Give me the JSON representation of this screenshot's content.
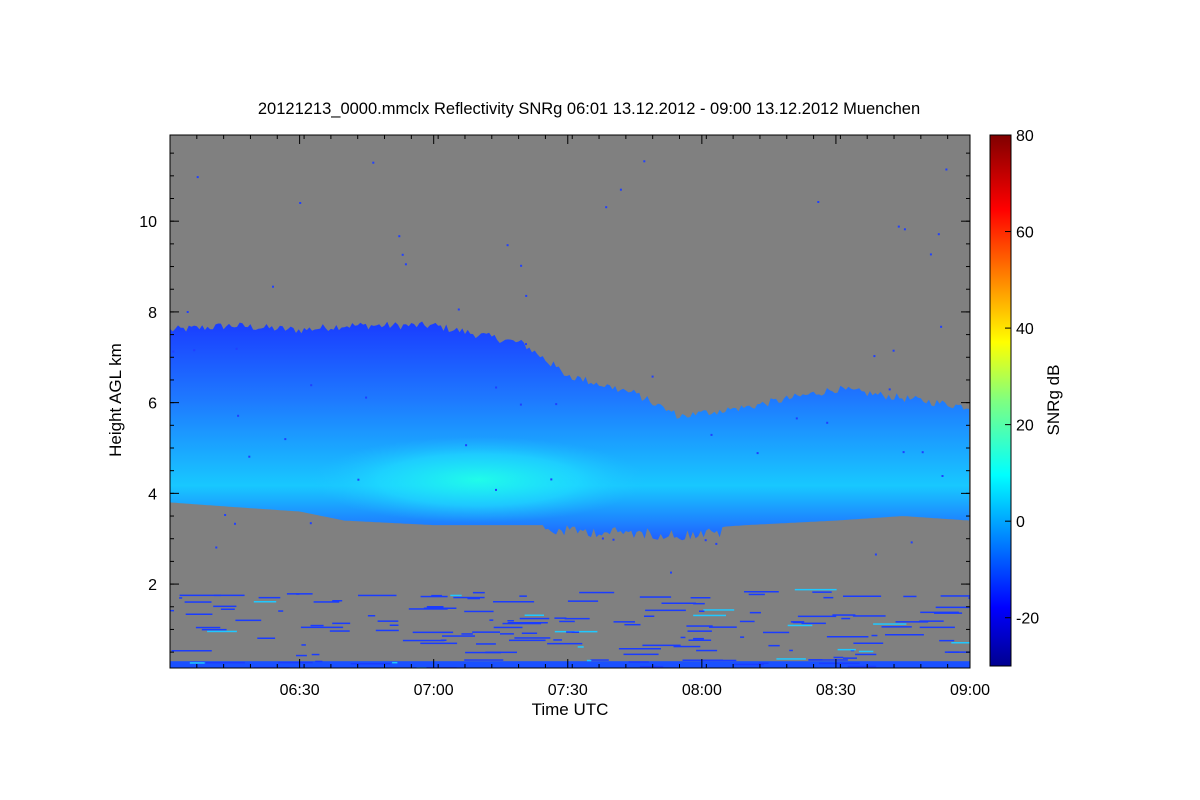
{
  "chart_data": {
    "type": "heatmap",
    "title": "20121213_0000.mmclx Reflectivity SNRg   06:01 13.12.2012 - 09:00 13.12.2012 Muenchen",
    "xlabel": "Time UTC",
    "ylabel": "Height AGL km",
    "x_range": [
      "06:01",
      "09:00"
    ],
    "x_ticks": [
      "06:30",
      "07:00",
      "07:30",
      "08:00",
      "08:30",
      "09:00"
    ],
    "y_range": [
      0.15,
      11.9
    ],
    "y_ticks": [
      2,
      4,
      6,
      8,
      10
    ],
    "colorbar": {
      "label": "SNRg dB",
      "range": [
        -30,
        80
      ],
      "ticks": [
        -20,
        0,
        20,
        40,
        60,
        80
      ],
      "colormap": "jet"
    },
    "background_color": "#808080",
    "cloud_layer": {
      "times": [
        "06:01",
        "06:15",
        "06:30",
        "06:40",
        "07:00",
        "07:20",
        "07:30",
        "07:45",
        "07:55",
        "08:10",
        "08:30",
        "08:45",
        "09:00"
      ],
      "top_km": [
        7.6,
        7.7,
        7.6,
        7.7,
        7.7,
        7.3,
        6.6,
        6.2,
        5.7,
        5.9,
        6.3,
        6.1,
        5.9
      ],
      "base_km": [
        3.8,
        3.7,
        3.6,
        3.4,
        3.3,
        3.3,
        3.3,
        3.25,
        3.2,
        3.3,
        3.4,
        3.5,
        3.4
      ],
      "peak_snr_db": 8
    },
    "surface_clutter_km": [
      0.15,
      1.9
    ]
  }
}
